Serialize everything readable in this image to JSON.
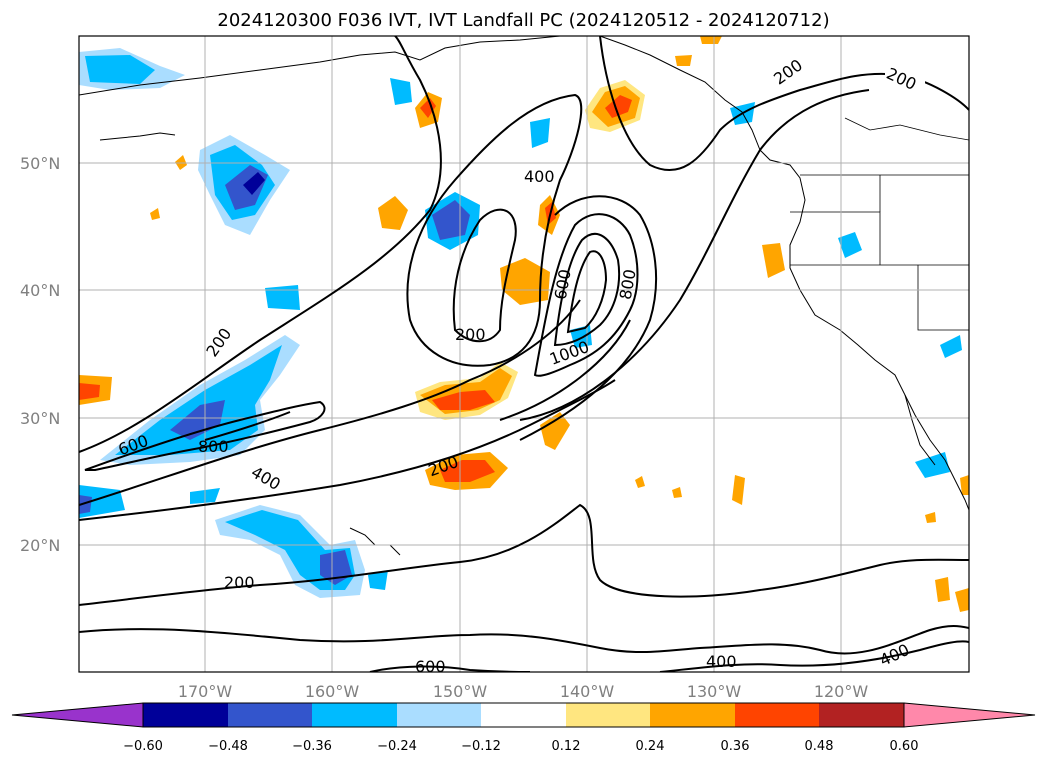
{
  "title": "2024120300 F036 IVT, IVT Landfall PC (2024120512 - 2024120712)",
  "latitude_labels": [
    "50°N",
    "40°N",
    "30°N",
    "20°N"
  ],
  "longitude_labels": [
    "170°W",
    "160°W",
    "150°W",
    "140°W",
    "130°W",
    "120°W"
  ],
  "colorbar": {
    "tick_labels": [
      "−0.60",
      "−0.48",
      "−0.36",
      "−0.24",
      "−0.12",
      "0.12",
      "0.24",
      "0.36",
      "0.48",
      "0.60"
    ],
    "colors": [
      "#9933cc",
      "#000099",
      "#3355cc",
      "#00bbff",
      "#aaddff",
      "#ffffff",
      "#ffe680",
      "#ffa500",
      "#ff4400",
      "#b22222",
      "#ff88aa"
    ]
  },
  "contour_labels": [
    "200",
    "200",
    "400",
    "600",
    "800",
    "200",
    "600",
    "800",
    "1000",
    "200",
    "400",
    "200",
    "600",
    "400",
    "400",
    "200"
  ],
  "legend_colors": {
    "land": "#ffffff",
    "contour": "#000000",
    "grid": "#b0b0b0"
  }
}
